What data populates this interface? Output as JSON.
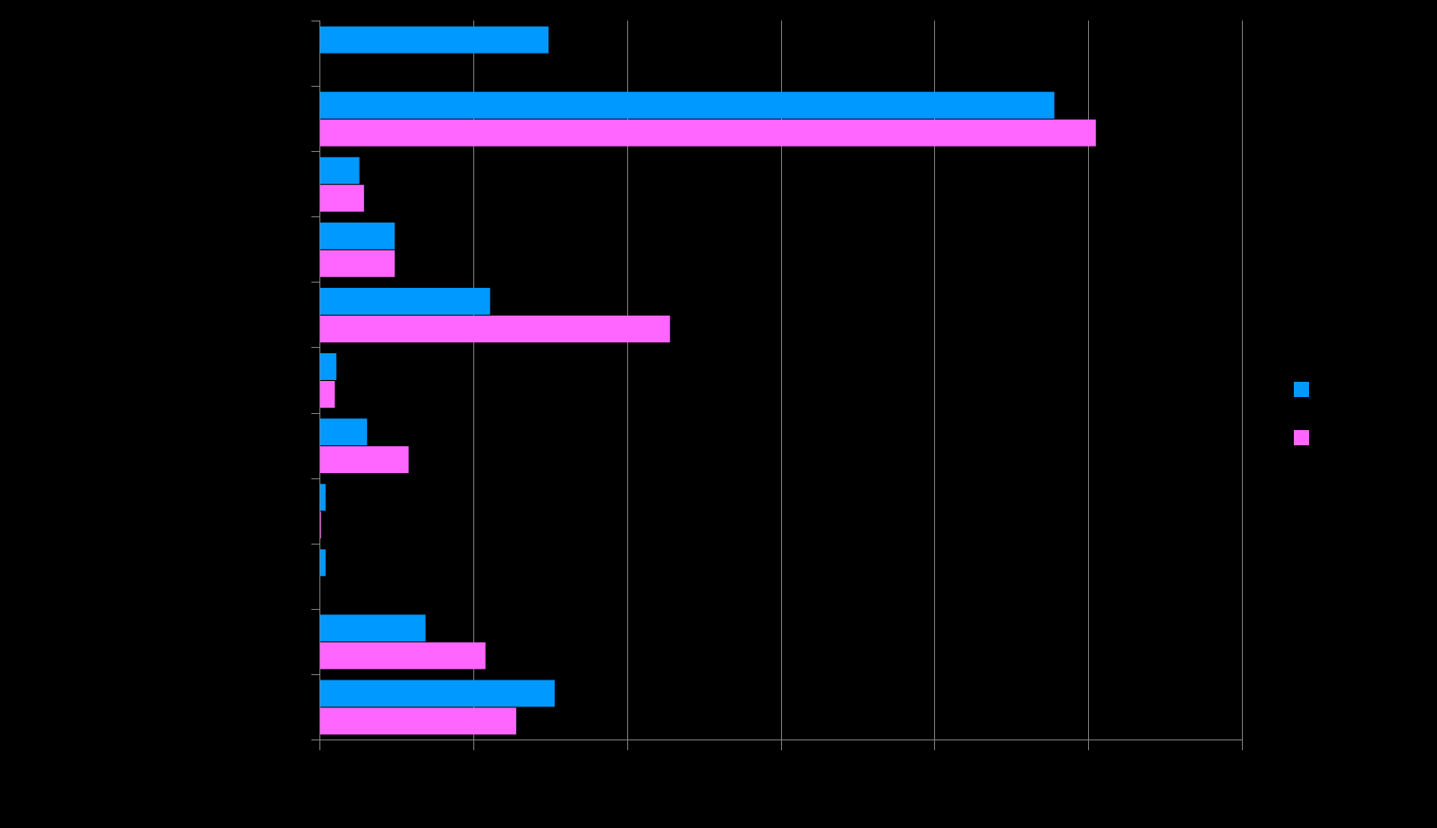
{
  "colors": {
    "background": "#000000",
    "grid": "#7f7f7f",
    "axis": "#7f7f7f",
    "series_1": "#0099ff",
    "series_2": "#ff66ff"
  },
  "chart_data": {
    "type": "bar",
    "orientation": "horizontal",
    "title": "",
    "xlabel": "",
    "ylabel": "",
    "xlim": [
      0,
      6
    ],
    "x_gridlines": [
      0,
      1,
      2,
      3,
      4,
      5,
      6
    ],
    "grid": true,
    "legend_position": "right",
    "categories": [
      "",
      "",
      "",
      "",
      "",
      "",
      "",
      "",
      "",
      "",
      ""
    ],
    "series": [
      {
        "color": "#0099ff",
        "values": [
          1.49,
          4.78,
          0.26,
          0.49,
          1.11,
          0.11,
          0.31,
          0.04,
          0.04,
          0.69,
          1.53
        ]
      },
      {
        "color": "#ff66ff",
        "values": [
          null,
          5.05,
          0.29,
          0.49,
          2.28,
          0.1,
          0.58,
          0.01,
          null,
          1.08,
          1.28
        ]
      }
    ]
  }
}
